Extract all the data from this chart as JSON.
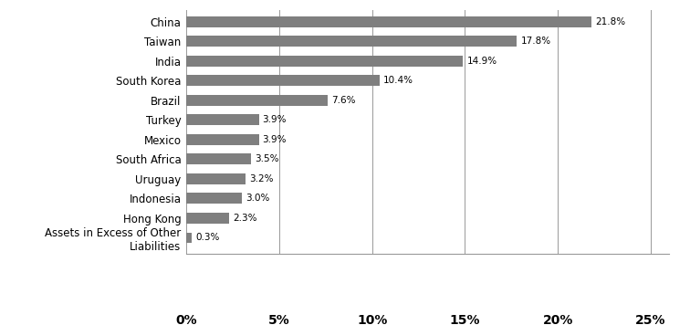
{
  "categories": [
    "Assets in Excess of Other\nLiabilities",
    "Hong Kong",
    "Indonesia",
    "Uruguay",
    "South Africa",
    "Mexico",
    "Turkey",
    "Brazil",
    "South Korea",
    "India",
    "Taiwan",
    "China"
  ],
  "values": [
    0.3,
    2.3,
    3.0,
    3.2,
    3.5,
    3.9,
    3.9,
    7.6,
    10.4,
    14.9,
    17.8,
    21.8
  ],
  "labels": [
    "0.3%",
    "2.3%",
    "3.0%",
    "3.2%",
    "3.5%",
    "3.9%",
    "3.9%",
    "7.6%",
    "10.4%",
    "14.9%",
    "17.8%",
    "21.8%"
  ],
  "bar_color": "#7f7f7f",
  "xlim": [
    0,
    26
  ],
  "xticks": [
    0,
    5,
    10,
    15,
    20,
    25
  ],
  "xtick_labels": [
    "0%",
    "5%",
    "10%",
    "15%",
    "20%",
    "25%"
  ],
  "figsize": [
    7.56,
    3.56
  ],
  "dpi": 100,
  "bar_height": 0.55,
  "label_fontsize": 7.5,
  "tick_fontsize": 10,
  "ytick_fontsize": 8.5
}
